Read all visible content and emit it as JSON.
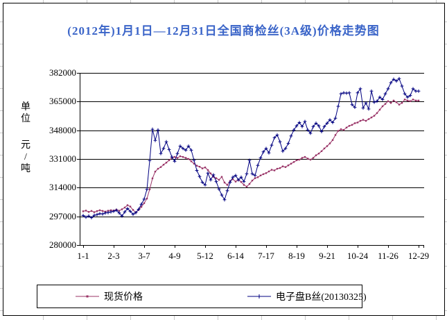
{
  "title": "(2012年)1月1日—12月31日全国商检丝(3A级)价格走势图",
  "colors": {
    "title": "#3a64c8",
    "axis_and_grid": "#000000",
    "spot_series": "#993366",
    "electronic_series": "#000080"
  },
  "y_axis": {
    "unit_chars": [
      "单",
      "位",
      "元",
      "/",
      "吨"
    ],
    "tick_labels": [
      "382000",
      "365000",
      "348000",
      "331000",
      "314000",
      "297000",
      "280000"
    ]
  },
  "x_axis": {
    "ticks": [
      "1-1",
      "2-3",
      "3-7",
      "4-9",
      "5-12",
      "6-14",
      "7-17",
      "8-19",
      "9-21",
      "10-24",
      "11-26",
      "12-29"
    ]
  },
  "legend": [
    {
      "label": "现货价格",
      "color": "#993366",
      "marker": "square"
    },
    {
      "label": "电子盘B丝(20130325)",
      "color": "#000080",
      "marker": "plus"
    }
  ],
  "chart_data": {
    "type": "line",
    "title": "(2012年)1月1日—12月31日全国商检丝(3A级)价格走势图",
    "xlabel": "",
    "ylabel": "单位 元/吨",
    "ylim": [
      280000,
      382000
    ],
    "y_ticks": [
      382000,
      365000,
      348000,
      331000,
      314000,
      297000,
      280000
    ],
    "grid": "horizontal",
    "legend_position": "bottom",
    "x_tick_labels": [
      "1-1",
      "2-3",
      "3-7",
      "4-9",
      "5-12",
      "6-14",
      "7-17",
      "8-19",
      "9-21",
      "10-24",
      "11-26",
      "12-29"
    ],
    "x_tick_days": [
      0,
      33,
      66,
      99,
      132,
      165,
      198,
      231,
      264,
      297,
      330,
      363
    ],
    "x_step_days": 3,
    "x_total_days": 363,
    "series": [
      {
        "name": "现货价格",
        "color": "#993366",
        "marker": "square",
        "values": [
          300000,
          300400,
          299600,
          300200,
          299500,
          300100,
          300600,
          300200,
          299800,
          300300,
          300600,
          300400,
          301000,
          300300,
          301200,
          302200,
          303600,
          302800,
          300800,
          299200,
          300800,
          302600,
          304800,
          307500,
          313000,
          319500,
          323500,
          325200,
          326200,
          327600,
          328800,
          330200,
          331600,
          332200,
          331600,
          332600,
          332200,
          331600,
          331000,
          329600,
          328200,
          327000,
          326400,
          325400,
          326000,
          324400,
          322400,
          320400,
          319600,
          318600,
          320400,
          317000,
          315600,
          318000,
          319000,
          317600,
          318600,
          317400,
          315600,
          314600,
          316200,
          318200,
          319600,
          320200,
          321200,
          322000,
          322600,
          323600,
          324600,
          324200,
          325200,
          325600,
          326600,
          326200,
          327200,
          328200,
          329200,
          330200,
          330600,
          331600,
          332200,
          331200,
          330600,
          331600,
          333200,
          334200,
          335600,
          337200,
          338600,
          340200,
          342200,
          345200,
          347600,
          348600,
          348200,
          349600,
          350600,
          351200,
          352200,
          352600,
          353600,
          354200,
          353600,
          354600,
          355600,
          356600,
          358200,
          360200,
          362200,
          363600,
          365200,
          364200,
          365600,
          364600,
          363200,
          364200,
          366200,
          365600,
          365200,
          366200,
          365600,
          365600
        ]
      },
      {
        "name": "电子盘B丝(20130325)",
        "color": "#000080",
        "marker": "plus",
        "values": [
          297500,
          296500,
          297200,
          296200,
          297600,
          298000,
          298600,
          298400,
          299000,
          299200,
          299600,
          300000,
          300600,
          299000,
          297200,
          299600,
          301600,
          300000,
          298200,
          299200,
          301200,
          304200,
          307200,
          313000,
          330000,
          348600,
          342000,
          348200,
          334200,
          337200,
          341200,
          336600,
          332200,
          329600,
          334200,
          338600,
          337200,
          336200,
          338600,
          336200,
          330200,
          324200,
          320600,
          317200,
          315600,
          322600,
          318600,
          321600,
          317600,
          313200,
          309600,
          306800,
          312200,
          317200,
          320200,
          321200,
          318600,
          320200,
          317600,
          322200,
          330200,
          322200,
          321200,
          327200,
          331600,
          335200,
          337200,
          334600,
          339200,
          343600,
          345200,
          341200,
          335600,
          337200,
          340200,
          344600,
          348200,
          350600,
          352600,
          350200,
          353200,
          348200,
          346200,
          350200,
          352200,
          350600,
          347200,
          350200,
          352200,
          354200,
          352600,
          355200,
          362200,
          369600,
          370200,
          370000,
          370200,
          363200,
          361600,
          370200,
          372600,
          361200,
          364200,
          360600,
          371200,
          364600,
          365200,
          367600,
          366200,
          369600,
          372600,
          376200,
          378200,
          377200,
          378600,
          374200,
          369600,
          367600,
          368600,
          372600,
          371200,
          371200
        ]
      }
    ]
  }
}
